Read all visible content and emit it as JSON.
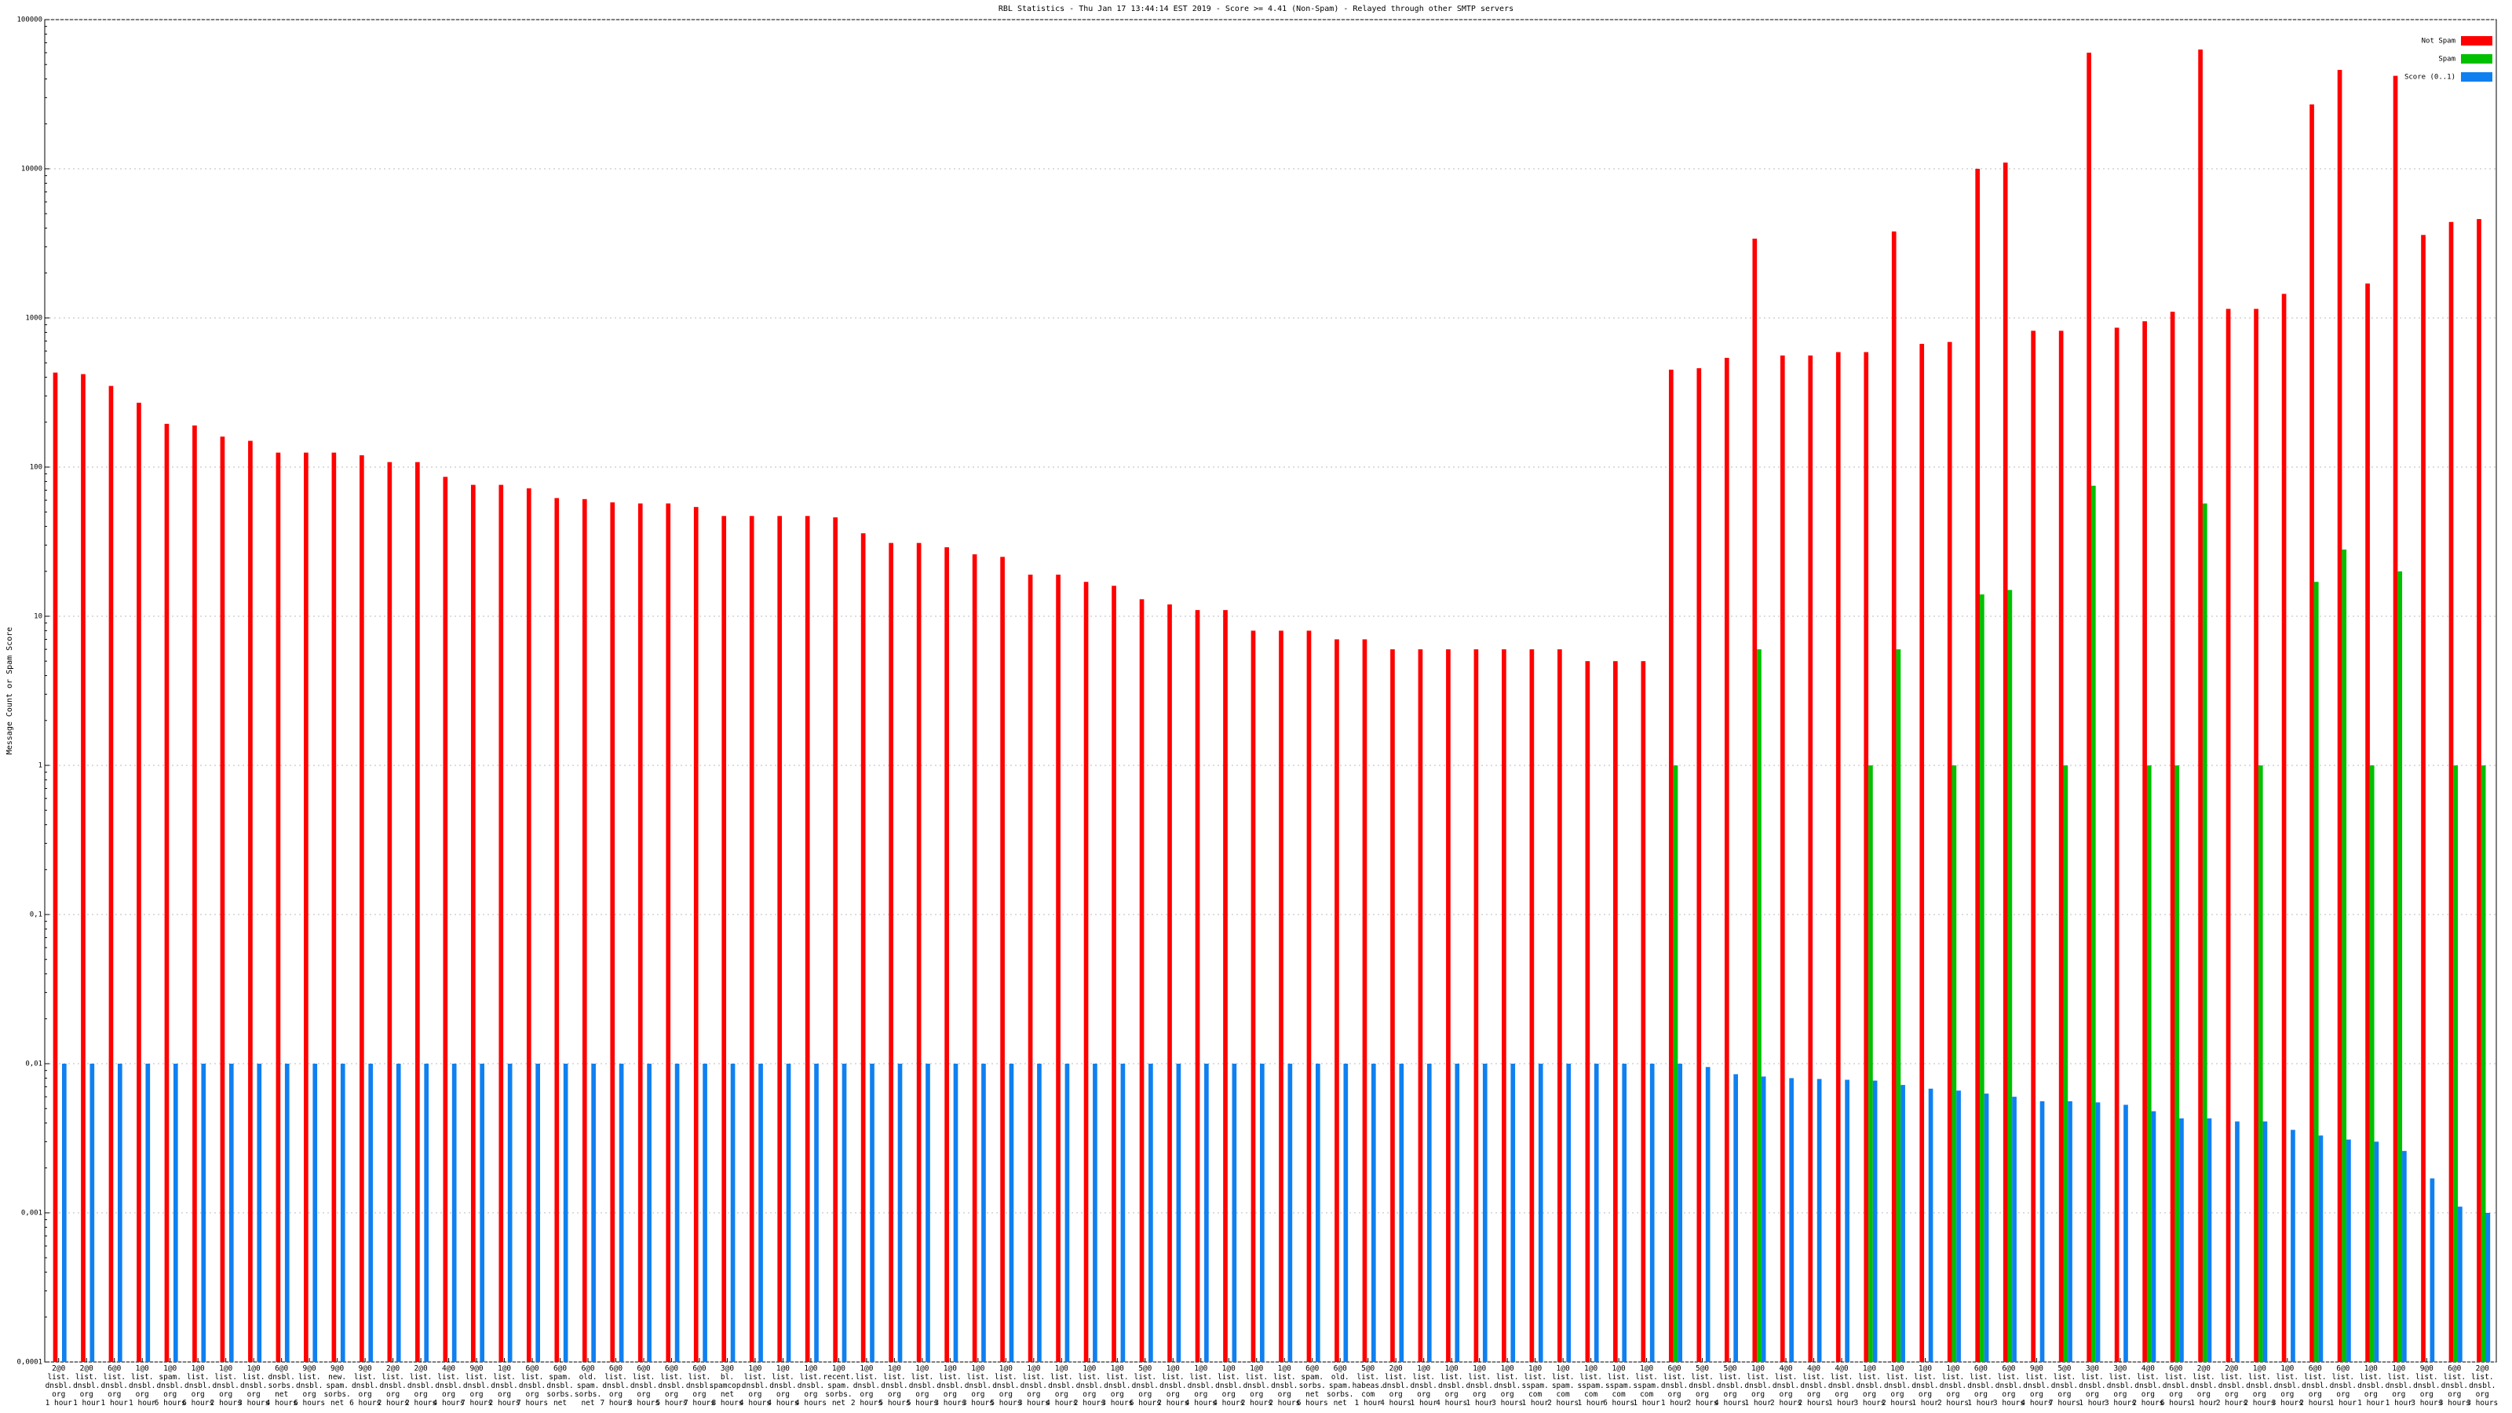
{
  "chart_data": {
    "type": "bar",
    "title": "RBL Statistics - Thu Jan 17 13:44:14 EST 2019 - Score >= 4.41 (Non-Spam) - Relayed through other SMTP servers",
    "y_label": "Message Count or Spam Score",
    "log_scale": true,
    "grid": true,
    "legend": "top-right",
    "ylim": [
      0.0001,
      100000
    ],
    "yticks": [
      {
        "value": 0.0001,
        "label": "0,0001"
      },
      {
        "value": 0.001,
        "label": "0,001"
      },
      {
        "value": 0.01,
        "label": "0,01"
      },
      {
        "value": 0.1,
        "label": "0,1"
      },
      1,
      10,
      100,
      1000,
      10000,
      100000
    ],
    "categories": [
      "2@0\nlist.\ndnsbl.\norg\n1 hour",
      "2@0\nlist.\ndnsbl.\norg\n1 hour",
      "6@0\nlist.\ndnsbl.\norg\n1 hour",
      "1@0\nlist.\ndnsbl.\norg\n1 hour",
      "1@0\nspam.\ndnsbl.\norg\n6 hours",
      "1@0\nlist.\ndnsbl.\norg\n6 hours",
      "1@0\nlist.\ndnsbl.\norg\n2 hours",
      "1@0\nlist.\ndnsbl.\norg\n3 hours",
      "6@0\ndnsbl.\nsorbs.\nnet\n4 hours",
      "9@0\nlist.\ndnsbl.\norg\n6 hours",
      "9@0\nnew.\nspam.\nsorbs.\nnet",
      "9@0\nlist.\ndnsbl.\norg\n6 hours",
      "2@0\nlist.\ndnsbl.\norg\n2 hours",
      "2@0\nlist.\ndnsbl.\norg\n2 hours",
      "4@0\nlist.\ndnsbl.\norg\n4 hours",
      "9@0\nlist.\ndnsbl.\norg\n7 hours",
      "1@0\nlist.\ndnsbl.\norg\n2 hours",
      "6@0\nlist.\ndnsbl.\norg\n7 hours",
      "6@0\nspam.\ndnsbl.\nsorbs.\nnet",
      "6@0\nold.\nspam.\nsorbs.\nnet",
      "6@0\nlist.\ndnsbl.\norg\n7 hours",
      "6@0\nlist.\ndnsbl.\norg\n3 hours",
      "6@0\nlist.\ndnsbl.\norg\n5 hours",
      "6@0\nlist.\ndnsbl.\norg\n7 hours",
      "3@0\nbl.\nspamcop.\nnet\n8 hours",
      "1@0\nlist.\ndnsbl.\norg\n4 hours",
      "1@0\nlist.\ndnsbl.\norg\n4 hours",
      "1@0\nlist.\ndnsbl.\norg\n4 hours",
      "1@0\nrecent.\nspam.\nsorbs.\nnet",
      "1@0\nlist.\ndnsbl.\norg\n2 hours",
      "1@0\nlist.\ndnsbl.\norg\n5 hours",
      "1@0\nlist.\ndnsbl.\norg\n5 hours",
      "1@0\nlist.\ndnsbl.\norg\n3 hours",
      "1@0\nlist.\ndnsbl.\norg\n3 hours",
      "1@0\nlist.\ndnsbl.\norg\n5 hours",
      "1@0\nlist.\ndnsbl.\norg\n3 hours",
      "1@0\nlist.\ndnsbl.\norg\n4 hours",
      "1@0\nlist.\ndnsbl.\norg\n2 hours",
      "1@0\nlist.\ndnsbl.\norg\n3 hours",
      "5@0\nlist.\ndnsbl.\norg\n6 hours",
      "1@0\nlist.\ndnsbl.\norg\n2 hours",
      "1@0\nlist.\ndnsbl.\norg\n4 hours",
      "1@0\nlist.\ndnsbl.\norg\n4 hours",
      "1@0\nlist.\ndnsbl.\norg\n2 hours",
      "1@0\nlist.\ndnsbl.\norg\n2 hours",
      "6@0\nspam.\nsorbs.\nnet\n6 hours",
      "6@0\nold.\nspam.\nsorbs.\nnet",
      "5@0\nlist.\nhabeas.\ncom\n1 hour",
      "2@0\nlist.\ndnsbl.\norg\n4 hours",
      "1@0\nlist.\ndnsbl.\norg\n1 hour",
      "1@0\nlist.\ndnsbl.\norg\n4 hours",
      "1@0\nlist.\ndnsbl.\norg\n1 hour",
      "1@0\nlist.\ndnsbl.\norg\n3 hours",
      "1@0\nlist.\nsspam.\ncom\n1 hour",
      "1@0\nlist.\nspam.\ncom\n2 hours",
      "1@0\nlist.\nsspam.\ncom\n1 hour",
      "1@0\nlist.\nsspam.\ncom\n6 hours",
      "1@0\nlist.\nsspam.\ncom\n1 hour",
      "6@0\nlist.\ndnsbl.\norg\n1 hour",
      "5@0\nlist.\ndnsbl.\norg\n2 hours",
      "5@0\nlist.\ndnsbl.\norg\n4 hours",
      "1@0\nlist.\ndnsbl.\norg\n1 hour",
      "4@0\nlist.\ndnsbl.\norg\n2 hours",
      "4@0\nlist.\ndnsbl.\norg\n2 hours",
      "4@0\nlist.\ndnsbl.\norg\n1 hour",
      "1@0\nlist.\ndnsbl.\norg\n3 hours",
      "1@0\nlist.\ndnsbl.\norg\n2 hours",
      "1@0\nlist.\ndnsbl.\norg\n1 hour",
      "1@0\nlist.\ndnsbl.\norg\n2 hours",
      "6@0\nlist.\ndnsbl.\norg\n1 hour",
      "6@0\nlist.\ndnsbl.\norg\n3 hours",
      "9@0\nlist.\ndnsbl.\norg\n4 hours",
      "5@0\nlist.\ndnsbl.\norg\n7 hours",
      "3@0\nlist.\ndnsbl.\norg\n1 hour",
      "3@0\nlist.\ndnsbl.\norg\n3 hours",
      "4@0\nlist.\ndnsbl.\norg\n2 hours",
      "6@0\nlist.\ndnsbl.\norg\n6 hours",
      "2@0\nlist.\ndnsbl.\norg\n1 hour",
      "2@0\nlist.\ndnsbl.\norg\n2 hours",
      "1@0\nlist.\ndnsbl.\norg\n2 hours",
      "1@0\nlist.\ndnsbl.\norg\n3 hours",
      "6@0\nlist.\ndnsbl.\norg\n2 hours",
      "6@0\nlist.\ndnsbl.\norg\n1 hour",
      "1@0\nlist.\ndnsbl.\norg\n1 hour",
      "1@0\nlist.\ndnsbl.\norg\n1 hour",
      "9@0\nlist.\ndnsbl.\norg\n3 hours",
      "6@0\nlist.\ndnsbl.\norg\n3 hours",
      "2@0\nlist.\ndnsbl.\norg\n3 hours"
    ],
    "series": [
      {
        "name": "Not Spam",
        "color": "#ff0000",
        "values": [
          430,
          420,
          350,
          270,
          195,
          190,
          160,
          150,
          125,
          125,
          125,
          120,
          108,
          108,
          86,
          76,
          76,
          72,
          62,
          61,
          58,
          57,
          57,
          54,
          47,
          47,
          47,
          47,
          46,
          36,
          31,
          31,
          29,
          26,
          25,
          19,
          19,
          17,
          16,
          13,
          12,
          11,
          11,
          8,
          8,
          8,
          7,
          7,
          6,
          6,
          6,
          6,
          6,
          6,
          6,
          5,
          5,
          5,
          450,
          460,
          540,
          3400,
          560,
          560,
          590,
          590,
          3800,
          670,
          690,
          10000,
          11000,
          820,
          820,
          60000,
          860,
          950,
          1100,
          63000,
          1150,
          1150,
          1450,
          27000,
          46000,
          1700,
          42000,
          3600,
          4400,
          4600
        ]
      },
      {
        "name": "Spam",
        "color": "#00c000",
        "values": [
          null,
          null,
          null,
          null,
          null,
          null,
          null,
          null,
          null,
          null,
          null,
          null,
          null,
          null,
          null,
          null,
          null,
          null,
          null,
          null,
          null,
          null,
          null,
          null,
          null,
          null,
          null,
          null,
          null,
          null,
          null,
          null,
          null,
          null,
          null,
          null,
          null,
          null,
          null,
          null,
          null,
          null,
          null,
          null,
          null,
          null,
          null,
          null,
          null,
          null,
          null,
          null,
          null,
          null,
          null,
          null,
          null,
          null,
          1,
          null,
          null,
          6,
          null,
          null,
          null,
          1,
          6,
          null,
          1,
          14,
          15,
          null,
          1,
          75,
          null,
          1,
          1,
          57,
          null,
          1,
          null,
          17,
          28,
          1,
          20,
          null,
          1,
          1
        ]
      },
      {
        "name": "Score (0..1)",
        "color": "#1080f0",
        "values": [
          0.01,
          0.01,
          0.01,
          0.01,
          0.01,
          0.01,
          0.01,
          0.01,
          0.01,
          0.01,
          0.01,
          0.01,
          0.01,
          0.01,
          0.01,
          0.01,
          0.01,
          0.01,
          0.01,
          0.01,
          0.01,
          0.01,
          0.01,
          0.01,
          0.01,
          0.01,
          0.01,
          0.01,
          0.01,
          0.01,
          0.01,
          0.01,
          0.01,
          0.01,
          0.01,
          0.01,
          0.01,
          0.01,
          0.01,
          0.01,
          0.01,
          0.01,
          0.01,
          0.01,
          0.01,
          0.01,
          0.01,
          0.01,
          0.01,
          0.01,
          0.01,
          0.01,
          0.01,
          0.01,
          0.01,
          0.01,
          0.01,
          0.01,
          0.01,
          0.0095,
          0.0085,
          0.0082,
          0.008,
          0.0079,
          0.0078,
          0.0077,
          0.0072,
          0.0068,
          0.0066,
          0.0063,
          0.006,
          0.0056,
          0.0056,
          0.0055,
          0.0053,
          0.0048,
          0.0043,
          0.0043,
          0.0041,
          0.0041,
          0.0036,
          0.0033,
          0.0031,
          0.003,
          0.0026,
          0.0017,
          0.0011,
          0.001
        ]
      }
    ]
  }
}
